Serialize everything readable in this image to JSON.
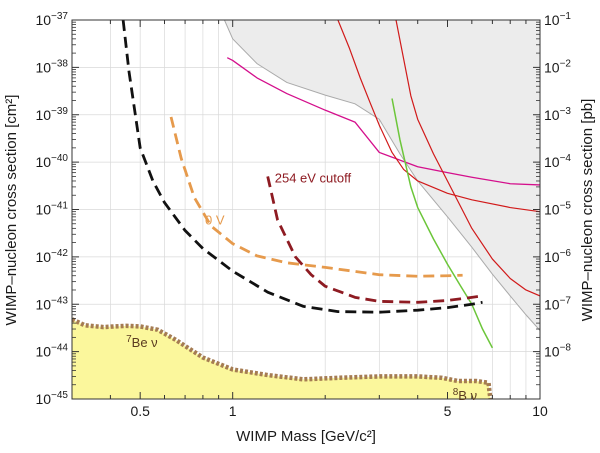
{
  "chart_data": {
    "type": "line",
    "xlabel": "WIMP Mass [GeV/c²]",
    "ylabel_left": "WIMP–nucleon cross section [cm²]",
    "ylabel_right": "WIMP–nucleon cross section [pb]",
    "xscale": "log",
    "yscale": "log",
    "xlim": [
      0.3,
      10
    ],
    "ylim_cm2": [
      1e-45,
      1e-37
    ],
    "ylim_pb": [
      1e-09,
      0.1
    ],
    "grid": true,
    "x_ticks": [
      {
        "value": 0.5,
        "label": "0.5"
      },
      {
        "value": 1,
        "label": "1"
      },
      {
        "value": 5,
        "label": "5"
      },
      {
        "value": 10,
        "label": "10"
      }
    ],
    "y_ticks_left": [
      {
        "exp": -37,
        "base": "10",
        "sup": "−37"
      },
      {
        "exp": -38,
        "base": "10",
        "sup": "−38"
      },
      {
        "exp": -39,
        "base": "10",
        "sup": "−39"
      },
      {
        "exp": -40,
        "base": "10",
        "sup": "−40"
      },
      {
        "exp": -41,
        "base": "10",
        "sup": "−41"
      },
      {
        "exp": -42,
        "base": "10",
        "sup": "−42"
      },
      {
        "exp": -43,
        "base": "10",
        "sup": "−43"
      },
      {
        "exp": -44,
        "base": "10",
        "sup": "−44"
      },
      {
        "exp": -45,
        "base": "10",
        "sup": "−45"
      }
    ],
    "y_ticks_right": [
      {
        "exp": -1,
        "base": "10",
        "sup": "−1"
      },
      {
        "exp": -2,
        "base": "10",
        "sup": "−2"
      },
      {
        "exp": -3,
        "base": "10",
        "sup": "−3"
      },
      {
        "exp": -4,
        "base": "10",
        "sup": "−4"
      },
      {
        "exp": -5,
        "base": "10",
        "sup": "−5"
      },
      {
        "exp": -6,
        "base": "10",
        "sup": "−6"
      },
      {
        "exp": -7,
        "base": "10",
        "sup": "−7"
      },
      {
        "exp": -8,
        "base": "10",
        "sup": "−8"
      }
    ],
    "colors": {
      "excluded_fill": "#ececec",
      "excluded_edge": "#aaaaaa",
      "neutrino_fill": "#fbf79c",
      "neutrino_edge": "#a57c52",
      "black": "#111111",
      "orange": "#e69a4c",
      "darkred": "#8e1b22",
      "red": "#d11a1a",
      "magenta": "#d40f8c",
      "green": "#6cc63a",
      "grid": "#d9d9d9"
    },
    "series": [
      {
        "id": "excluded-region",
        "style": "fill",
        "x": [
          0.94,
          1.0,
          1.2,
          1.5,
          2.0,
          2.5,
          3.0,
          3.5,
          4.0,
          5.0,
          6.0,
          7.0,
          8.0,
          9.0,
          10.0
        ],
        "y_cm2": [
          1e-37,
          4e-38,
          1.2e-38,
          4.8e-39,
          2.6e-39,
          1.7e-39,
          8e-40,
          1.5e-40,
          4e-41,
          7e-42,
          1.6e-42,
          4.3e-43,
          1.5e-43,
          6e-44,
          2.8e-44
        ]
      },
      {
        "id": "neutrino-floor",
        "style": "fill-dotted-edge",
        "x": [
          0.3,
          0.33,
          0.38,
          0.45,
          0.5,
          0.57,
          0.65,
          0.8,
          1.0,
          1.3,
          1.7,
          2.2,
          3.0,
          4.0,
          4.8,
          5.4,
          6.2,
          6.8,
          6.85,
          6.9
        ],
        "y_cm2": [
          4.8e-44,
          3.6e-44,
          3.3e-44,
          3.5e-44,
          3.4e-44,
          2.9e-44,
          1.8e-44,
          7.5e-45,
          4.2e-45,
          3.2e-45,
          2.6e-45,
          2.8e-45,
          3e-45,
          3e-45,
          2.8e-45,
          2.4e-45,
          2.4e-45,
          2.2e-45,
          1.4e-45,
          1e-45
        ]
      },
      {
        "id": "black-dashed",
        "style": "dashed",
        "x": [
          0.44,
          0.46,
          0.5,
          0.55,
          0.6,
          0.7,
          0.8,
          1.0,
          1.3,
          1.7,
          2.2,
          3.0,
          4.0,
          5.0,
          6.0,
          6.5
        ],
        "y_cm2": [
          1e-37,
          8e-39,
          2e-40,
          4e-41,
          1.4e-41,
          3.6e-42,
          1.5e-42,
          5e-43,
          1.8e-43,
          9e-44,
          7e-44,
          6.8e-44,
          7.5e-44,
          8.5e-44,
          1e-43,
          1.1e-43
        ]
      },
      {
        "id": "orange-dashed",
        "style": "dashed",
        "x": [
          0.63,
          0.68,
          0.75,
          0.85,
          1.0,
          1.2,
          1.5,
          2.0,
          3.0,
          4.0,
          5.0,
          5.6
        ],
        "y_cm2": [
          9e-40,
          1.2e-40,
          1.8e-41,
          4.5e-42,
          1.9e-42,
          1.05e-42,
          7.5e-43,
          6e-43,
          4.2e-43,
          3.9e-43,
          4e-43,
          4.1e-43
        ]
      },
      {
        "id": "darkred-dashed",
        "style": "dashed",
        "x": [
          1.3,
          1.4,
          1.6,
          1.8,
          2.0,
          2.5,
          3.0,
          4.0,
          5.0,
          6.0,
          6.5
        ],
        "y_cm2": [
          5e-41,
          6e-42,
          1e-42,
          4.2e-43,
          2.4e-43,
          1.4e-43,
          1.15e-43,
          1.1e-43,
          1.2e-43,
          1.4e-43,
          1.5e-43
        ]
      },
      {
        "id": "magenta-line",
        "style": "solid",
        "x": [
          0.96,
          1.0,
          1.2,
          1.5,
          2.0,
          2.5,
          3.0,
          4.0,
          5.0,
          6.0,
          8.0,
          10.0
        ],
        "y_cm2": [
          1.6e-38,
          1.4e-38,
          6e-39,
          2.8e-39,
          1.25e-39,
          7e-40,
          1.6e-40,
          8e-41,
          6e-41,
          4.8e-41,
          3.5e-41,
          3.3e-41
        ]
      },
      {
        "id": "red-line-1",
        "style": "solid",
        "x": [
          2.2,
          2.4,
          2.6,
          2.8,
          3.0,
          3.3,
          3.6,
          4.0,
          5.0,
          6.0,
          8.0,
          10.0
        ],
        "y_cm2": [
          1e-37,
          2.5e-38,
          6e-39,
          1.8e-39,
          6e-40,
          1.6e-40,
          7e-41,
          4e-41,
          2.2e-41,
          1.6e-41,
          1.1e-41,
          9e-42
        ]
      },
      {
        "id": "red-line-2",
        "style": "solid",
        "x": [
          3.4,
          3.6,
          3.8,
          4.0,
          4.5,
          5.0,
          5.5,
          6.0,
          7.0,
          8.0,
          9.0,
          10.0
        ],
        "y_cm2": [
          1e-37,
          1.5e-38,
          2.5e-39,
          8e-40,
          1.5e-40,
          4e-41,
          1.2e-41,
          4e-42,
          9e-43,
          3.5e-43,
          2e-43,
          1.5e-43
        ]
      },
      {
        "id": "green-line",
        "style": "solid",
        "x": [
          3.3,
          3.5,
          3.8,
          4.0,
          4.5,
          5.0,
          5.5,
          6.0,
          6.5,
          7.0
        ],
        "y_cm2": [
          2.2e-39,
          3e-40,
          3e-41,
          1.1e-41,
          2.4e-42,
          7e-43,
          2.5e-43,
          1e-43,
          3e-44,
          1.2e-44
        ]
      }
    ],
    "annotations": [
      {
        "id": "cutoff",
        "text": "254 eV cutoff",
        "x": 1.33,
        "y_cm2": 5e-41
      },
      {
        "id": "zero-v",
        "text": "0 V",
        "x": 0.85,
        "y_cm2": 6.5e-42
      },
      {
        "id": "be7",
        "sup": "7",
        "text": "Be ν",
        "x": 0.45,
        "y_cm2": 1.6e-44
      },
      {
        "id": "b8",
        "sup": "8",
        "text": "B ν",
        "x": 5.2,
        "y_cm2": 1.2e-45
      }
    ]
  }
}
